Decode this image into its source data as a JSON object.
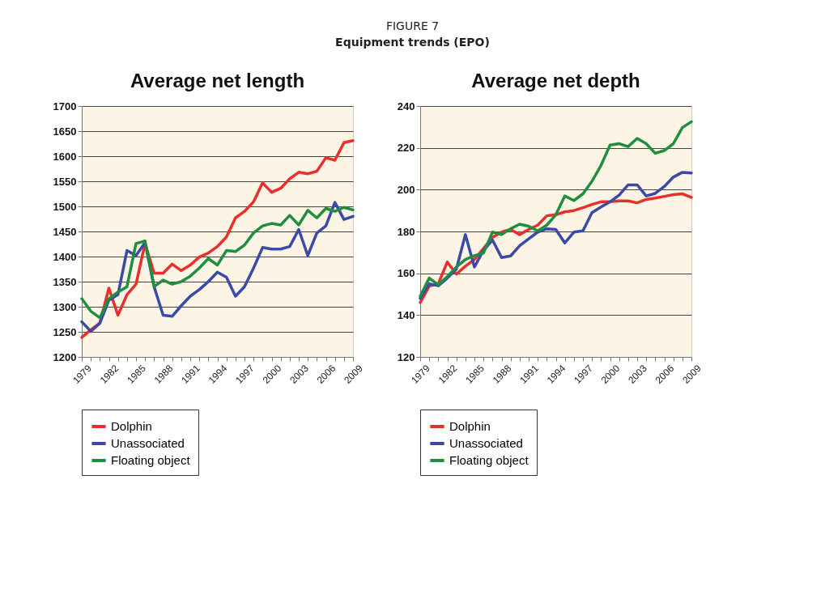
{
  "chart_data": [
    {
      "type": "line",
      "title": "Average net length",
      "annotations": [
        "FIGURE 7",
        "Equipment trends (EPO)"
      ],
      "categories": [
        "1979",
        null,
        null,
        "1982",
        null,
        null,
        "1985",
        null,
        null,
        "1988",
        null,
        null,
        "1991",
        null,
        null,
        "1994",
        null,
        null,
        "1997",
        null,
        null,
        "2000",
        null,
        null,
        "2003",
        null,
        null,
        "2006",
        null,
        null,
        "2009"
      ],
      "series": [
        {
          "name": "Dolphin",
          "color": "#e8302a",
          "values": [
            1239,
            1254,
            1268,
            1337,
            1283,
            1324,
            1345,
            1426,
            1367,
            1367,
            1385,
            1372,
            1383,
            1399,
            1407,
            1420,
            1439,
            1477,
            1490,
            1509,
            1547,
            1528,
            1536,
            1555,
            1568,
            1565,
            1570,
            1597,
            1592,
            1627,
            1631
          ]
        },
        {
          "name": "Unassociated",
          "color": "#3a4aa8",
          "values": [
            1270,
            1251,
            1267,
            1313,
            1324,
            1412,
            1402,
            1428,
            1340,
            1283,
            1281,
            1302,
            1321,
            1334,
            1350,
            1369,
            1359,
            1321,
            1340,
            1377,
            1418,
            1415,
            1415,
            1420,
            1454,
            1402,
            1447,
            1461,
            1508,
            1474,
            1480
          ]
        },
        {
          "name": "Floating object",
          "color": "#1f8f3f",
          "values": [
            1316,
            1291,
            1278,
            1316,
            1329,
            1340,
            1426,
            1431,
            1340,
            1353,
            1345,
            1350,
            1361,
            1377,
            1396,
            1383,
            1412,
            1410,
            1423,
            1447,
            1461,
            1466,
            1463,
            1482,
            1463,
            1492,
            1477,
            1496,
            1490,
            1498,
            1493
          ]
        }
      ],
      "ylim": [
        1200,
        1700
      ],
      "yticks": [
        1200,
        1250,
        1300,
        1350,
        1400,
        1450,
        1500,
        1550,
        1600,
        1650,
        1700
      ],
      "grid": "y",
      "legend": "bottom"
    },
    {
      "type": "line",
      "title": "Average net depth",
      "categories": [
        "1979",
        null,
        null,
        "1982",
        null,
        null,
        "1985",
        null,
        null,
        "1988",
        null,
        null,
        "1991",
        null,
        null,
        "1994",
        null,
        null,
        "1997",
        null,
        null,
        "2000",
        null,
        null,
        "2003",
        null,
        null,
        "2006",
        null,
        null,
        "2009"
      ],
      "series": [
        {
          "name": "Dolphin",
          "color": "#e8302a",
          "values": [
            146,
            153.8,
            155,
            165.4,
            159.6,
            163.4,
            166.6,
            171.8,
            177.2,
            179.7,
            181,
            178.5,
            181,
            183,
            187.5,
            188,
            189.4,
            190,
            191.4,
            192.9,
            194.2,
            194.2,
            194.6,
            194.6,
            193.7,
            195.3,
            196,
            196.8,
            197.6,
            198,
            196.3
          ]
        },
        {
          "name": "Unassociated",
          "color": "#3a4aa8",
          "values": [
            148,
            155,
            154,
            157.7,
            162,
            178.5,
            163,
            171,
            175.9,
            167.5,
            168.3,
            173.2,
            176.5,
            179.7,
            181.3,
            181,
            174.5,
            179.7,
            180.3,
            189,
            191.7,
            194.2,
            197.4,
            202.3,
            202.3,
            197,
            198.2,
            201.5,
            206,
            208.3,
            208
          ]
        },
        {
          "name": "Floating object",
          "color": "#1f8f3f",
          "values": [
            149,
            157.7,
            154.5,
            158.4,
            163,
            166.6,
            168.4,
            169.7,
            179.7,
            178.5,
            181.3,
            183.5,
            182.5,
            180.3,
            183,
            188,
            197,
            194.8,
            198,
            204,
            211.6,
            221.3,
            222,
            220.6,
            224.5,
            222,
            217.4,
            218.7,
            222,
            229.7,
            232.5
          ]
        }
      ],
      "ylim": [
        120,
        240
      ],
      "yticks": [
        120,
        140,
        160,
        180,
        200,
        220,
        240
      ],
      "grid": "y",
      "legend": "bottom"
    }
  ]
}
